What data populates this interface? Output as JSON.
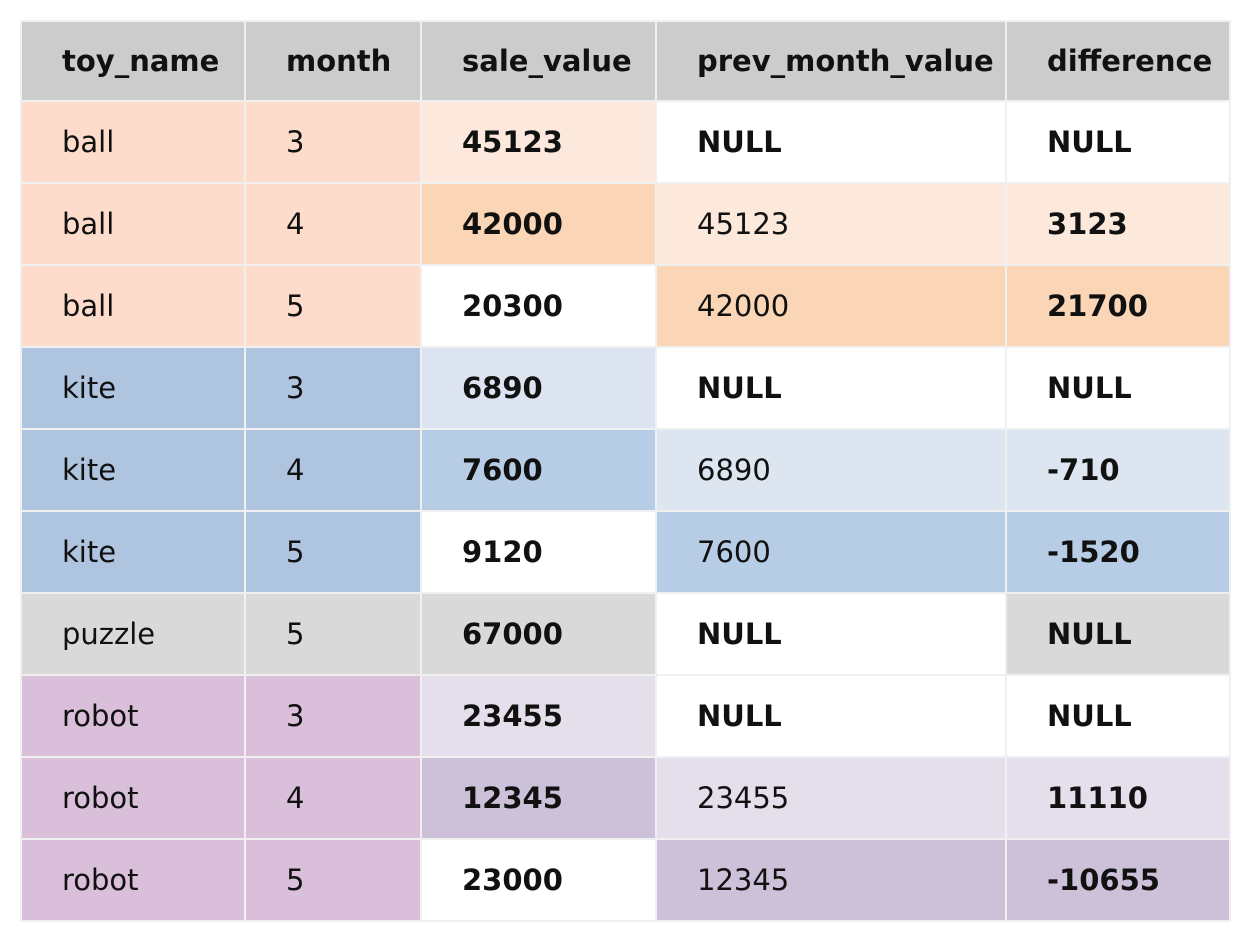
{
  "table": {
    "columns": [
      "toy_name",
      "month",
      "sale_value",
      "prev_month_value",
      "difference"
    ],
    "rows": [
      [
        "ball",
        "3",
        "45123",
        "NULL",
        "NULL"
      ],
      [
        "ball",
        "4",
        "42000",
        "45123",
        "3123"
      ],
      [
        "ball",
        "5",
        "20300",
        "42000",
        "21700"
      ],
      [
        "kite",
        "3",
        "6890",
        "NULL",
        "NULL"
      ],
      [
        "kite",
        "4",
        "7600",
        "6890",
        "-710"
      ],
      [
        "kite",
        "5",
        "9120",
        "7600",
        "-1520"
      ],
      [
        "puzzle",
        "5",
        "67000",
        "NULL",
        "NULL"
      ],
      [
        "robot",
        "3",
        "23455",
        "NULL",
        "NULL"
      ],
      [
        "robot",
        "4",
        "12345",
        "23455",
        "11110"
      ],
      [
        "robot",
        "5",
        "23000",
        "12345",
        "-10655"
      ]
    ]
  }
}
